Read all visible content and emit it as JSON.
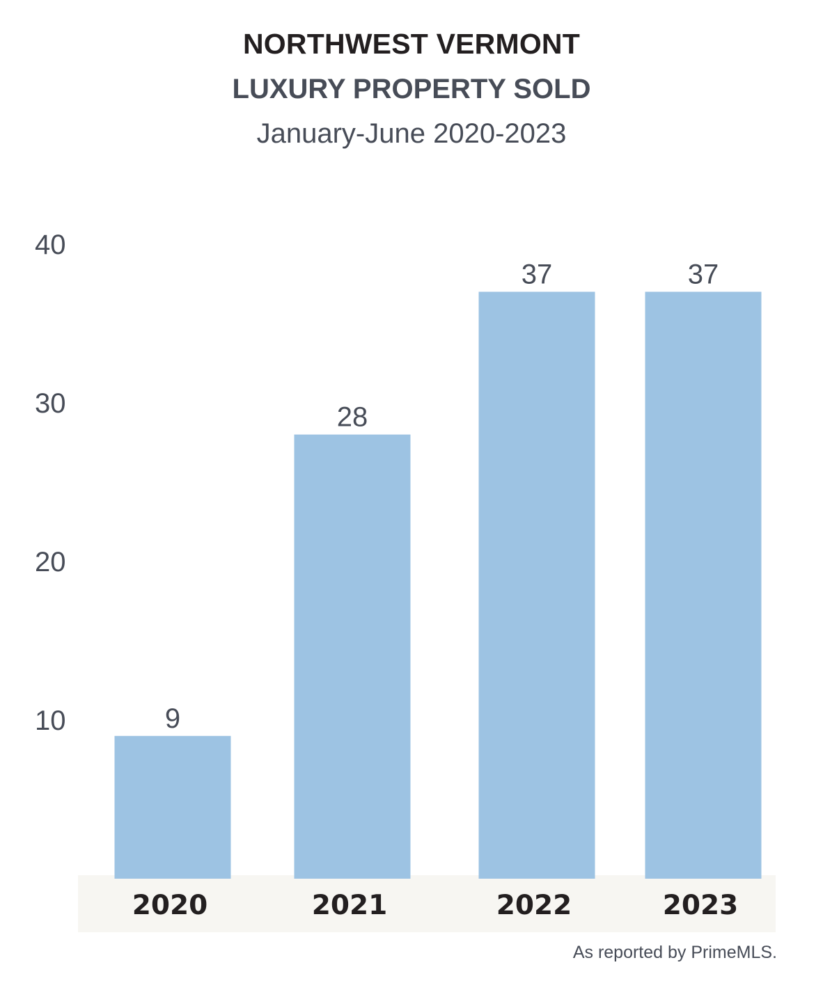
{
  "titles": {
    "line1": "NORTHWEST VERMONT",
    "line2": "LUXURY PROPERTY SOLD",
    "subtitle": "January-June 2020-2023"
  },
  "source_note": "As reported by PrimeMLS.",
  "colors": {
    "bar": "#9dc3e3",
    "axis_band": "#f7f6f2",
    "text_dark": "#231f20",
    "text_gray": "#474c57"
  },
  "chart_data": {
    "type": "bar",
    "title": "NORTHWEST VERMONT LUXURY PROPERTY SOLD",
    "subtitle": "January-June 2020-2023",
    "categories": [
      "2020",
      "2021",
      "2022",
      "2023"
    ],
    "values": [
      9,
      28,
      37,
      37
    ],
    "data_labels": [
      "9",
      "28",
      "37",
      "37"
    ],
    "yticks": [
      10,
      20,
      30,
      40
    ],
    "ylim": [
      0,
      40
    ],
    "xlabel": "",
    "ylabel": "",
    "grid": false,
    "legend": "none"
  }
}
